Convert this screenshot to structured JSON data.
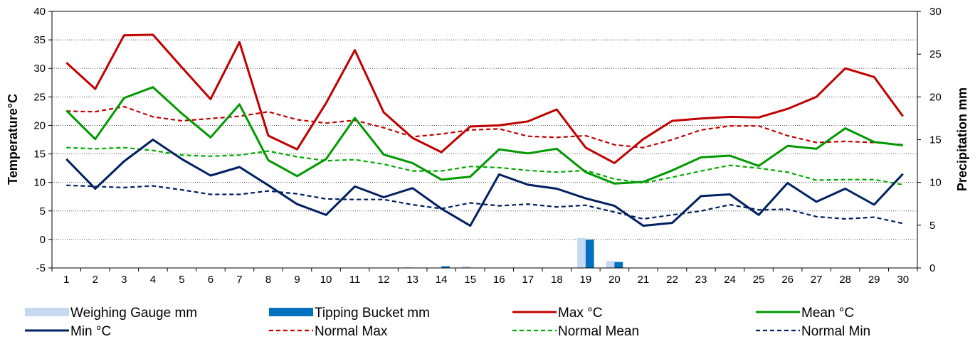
{
  "chart_data": {
    "type": "line",
    "title": "",
    "xlabel": "",
    "ylabel": "Temperature°C",
    "y2label": "Precipitation mm",
    "ylim": [
      -5,
      40
    ],
    "y2lim": [
      0,
      30
    ],
    "yticks": [
      "-5",
      "0",
      "5",
      "10",
      "15",
      "20",
      "25",
      "30",
      "35",
      "40"
    ],
    "y2ticks": [
      "0",
      "5",
      "10",
      "15",
      "20",
      "25",
      "30"
    ],
    "grid": "horizontal dotted",
    "legend_position": "bottom",
    "categories": [
      "1",
      "2",
      "3",
      "4",
      "5",
      "6",
      "7",
      "8",
      "9",
      "10",
      "11",
      "12",
      "13",
      "14",
      "15",
      "16",
      "17",
      "18",
      "19",
      "20",
      "21",
      "22",
      "23",
      "24",
      "25",
      "26",
      "27",
      "28",
      "29",
      "30"
    ],
    "series": [
      {
        "name": "Max °C",
        "type": "line",
        "axis": "left",
        "color": "#c00000",
        "dash": "solid",
        "values": [
          31.0,
          26.4,
          35.8,
          35.9,
          30.2,
          24.6,
          34.6,
          18.2,
          15.8,
          23.9,
          33.2,
          22.3,
          17.8,
          15.3,
          19.8,
          20.0,
          20.7,
          22.8,
          16.1,
          13.4,
          17.6,
          20.8,
          21.2,
          21.5,
          21.4,
          22.9,
          25.0,
          30.0,
          28.5,
          21.6
        ]
      },
      {
        "name": "Mean °C",
        "type": "line",
        "axis": "left",
        "color": "#009900",
        "dash": "solid",
        "values": [
          22.6,
          17.6,
          24.8,
          26.7,
          22.1,
          17.9,
          23.7,
          13.9,
          11.1,
          14.1,
          21.3,
          14.9,
          13.4,
          10.5,
          11.0,
          15.8,
          15.1,
          15.9,
          11.8,
          9.8,
          10.1,
          12.1,
          14.4,
          14.7,
          12.9,
          16.4,
          15.9,
          19.5,
          17.1,
          16.5
        ]
      },
      {
        "name": "Min °C",
        "type": "line",
        "axis": "left",
        "color": "#002060",
        "dash": "solid",
        "values": [
          14.1,
          8.9,
          13.7,
          17.5,
          14.1,
          11.2,
          12.7,
          9.5,
          6.2,
          4.3,
          9.3,
          7.4,
          9.0,
          5.4,
          2.4,
          11.4,
          9.6,
          8.9,
          7.2,
          5.9,
          2.4,
          2.9,
          7.6,
          7.9,
          4.3,
          9.9,
          6.6,
          8.9,
          6.1,
          11.5
        ]
      },
      {
        "name": "Normal Max",
        "type": "line",
        "axis": "left",
        "color": "#c00000",
        "dash": "dashed",
        "values": [
          22.5,
          22.4,
          23.3,
          21.5,
          20.8,
          21.2,
          21.6,
          22.4,
          21.0,
          20.4,
          20.9,
          19.6,
          18.0,
          18.5,
          19.2,
          19.4,
          18.1,
          17.9,
          18.2,
          16.6,
          16.1,
          17.5,
          19.2,
          19.9,
          19.9,
          18.2,
          17.0,
          17.2,
          17.0,
          16.6
        ]
      },
      {
        "name": "Normal Mean",
        "type": "line",
        "axis": "left",
        "color": "#00aa00",
        "dash": "dashed",
        "values": [
          16.1,
          15.9,
          16.1,
          15.6,
          14.8,
          14.6,
          14.8,
          15.5,
          14.5,
          13.8,
          14.0,
          13.2,
          12.0,
          12.0,
          12.8,
          12.6,
          12.1,
          11.8,
          12.1,
          10.6,
          9.9,
          10.9,
          12.0,
          13.0,
          12.5,
          11.8,
          10.4,
          10.5,
          10.5,
          9.6
        ]
      },
      {
        "name": "Normal Min",
        "type": "line",
        "axis": "left",
        "color": "#002060",
        "dash": "dashed",
        "values": [
          9.5,
          9.3,
          9.1,
          9.4,
          8.7,
          7.9,
          7.9,
          8.5,
          8.0,
          7.1,
          7.0,
          7.0,
          6.1,
          5.4,
          6.4,
          5.9,
          6.2,
          5.7,
          6.0,
          4.8,
          3.6,
          4.3,
          5.0,
          6.1,
          5.2,
          5.3,
          4.0,
          3.6,
          3.9,
          2.8
        ]
      },
      {
        "name": "Weighing Gauge mm",
        "type": "bar",
        "axis": "right",
        "color": "#c5d9f1",
        "values": [
          0,
          0,
          0,
          0,
          0,
          0,
          0,
          0,
          0,
          0,
          0,
          0,
          0.1,
          0,
          0.2,
          0,
          0,
          0,
          3.5,
          0.8,
          0,
          0,
          0,
          0,
          0,
          0,
          0,
          0,
          0,
          0
        ]
      },
      {
        "name": "Tipping Bucket mm",
        "type": "bar",
        "axis": "right",
        "color": "#0070c0",
        "values": [
          0,
          0,
          0,
          0,
          0,
          0,
          0,
          0,
          0,
          0,
          0,
          0,
          0,
          0.2,
          0,
          0,
          0,
          0,
          3.3,
          0.7,
          0,
          0,
          0,
          0,
          0,
          0,
          0,
          0,
          0,
          0
        ]
      }
    ],
    "legend": [
      {
        "label": "Weighing Gauge mm",
        "kind": "bar",
        "color": "#c5d9f1"
      },
      {
        "label": "Tipping Bucket mm",
        "kind": "bar",
        "color": "#0070c0"
      },
      {
        "label": "Max °C",
        "kind": "line",
        "color": "#c00000",
        "dash": "solid"
      },
      {
        "label": "Mean °C",
        "kind": "line",
        "color": "#009900",
        "dash": "solid"
      },
      {
        "label": "Min °C",
        "kind": "line",
        "color": "#002060",
        "dash": "solid"
      },
      {
        "label": "Normal Max",
        "kind": "line",
        "color": "#c00000",
        "dash": "dashed"
      },
      {
        "label": "Normal Mean",
        "kind": "line",
        "color": "#00aa00",
        "dash": "dashed"
      },
      {
        "label": "Normal Min",
        "kind": "line",
        "color": "#002060",
        "dash": "dashed"
      }
    ]
  }
}
